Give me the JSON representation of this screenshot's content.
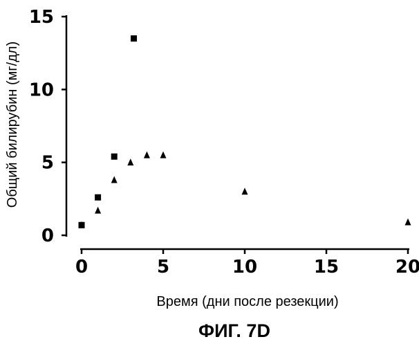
{
  "chart_data": {
    "type": "scatter",
    "title": "",
    "caption": "ФИГ. 7D",
    "xlabel": "Время (дни после резекции)",
    "ylabel": "Общий билирубин (мг/дл)",
    "xlim": [
      0,
      20
    ],
    "ylim": [
      0,
      15
    ],
    "xticks": [
      0,
      5,
      10,
      15,
      20
    ],
    "yticks": [
      0,
      5,
      10,
      15
    ],
    "grid": false,
    "legend": "none",
    "series": [
      {
        "marker": "square",
        "points": [
          {
            "x": 0,
            "y": 0.7
          },
          {
            "x": 1,
            "y": 2.6
          },
          {
            "x": 2,
            "y": 5.4
          },
          {
            "x": 3.2,
            "y": 13.5
          }
        ]
      },
      {
        "marker": "triangle",
        "points": [
          {
            "x": 0,
            "y": 0.7
          },
          {
            "x": 1,
            "y": 1.7
          },
          {
            "x": 2,
            "y": 3.8
          },
          {
            "x": 3,
            "y": 5.0
          },
          {
            "x": 4,
            "y": 5.5
          },
          {
            "x": 5,
            "y": 5.5
          },
          {
            "x": 10,
            "y": 3.0
          },
          {
            "x": 20,
            "y": 0.9
          }
        ]
      }
    ],
    "color": "#000000"
  }
}
